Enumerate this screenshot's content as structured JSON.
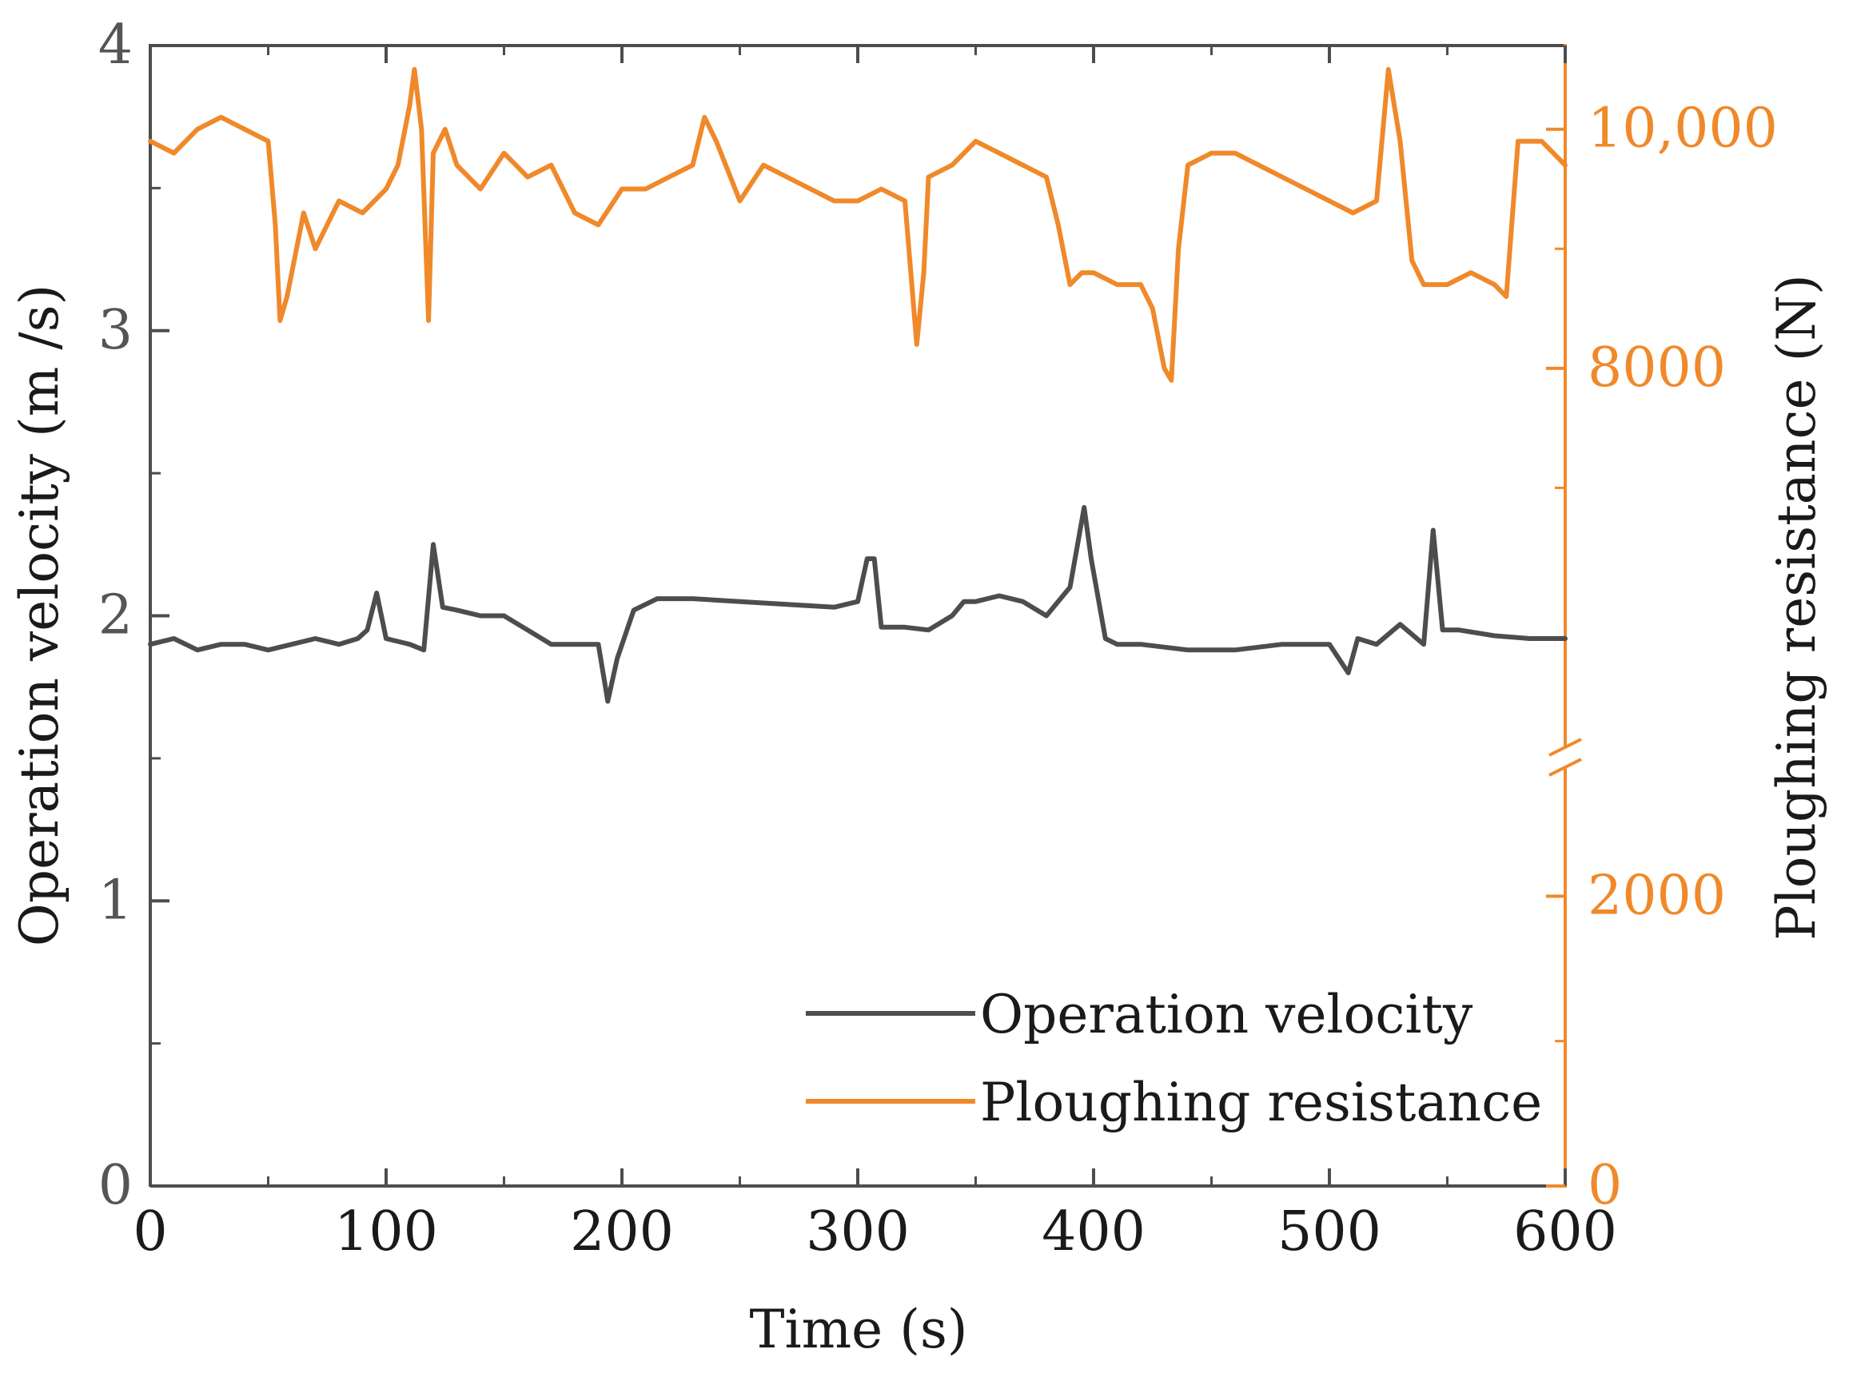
{
  "chart_data": {
    "type": "line",
    "xlabel": "Time (s)",
    "ylabel_left": "Operation velocity (m /s)",
    "ylabel_right": "Ploughing resistance (N)",
    "xlim": [
      0,
      600
    ],
    "ylim_left": [
      0,
      4
    ],
    "ylim_right_lower": [
      0,
      3000
    ],
    "ylim_right_upper": [
      6000,
      10700
    ],
    "right_axis_break": true,
    "x_ticks": [
      "0",
      "100",
      "200",
      "300",
      "400",
      "500",
      "600"
    ],
    "y_left_ticks": [
      "0",
      "1",
      "2",
      "3",
      "4"
    ],
    "y_right_ticks": [
      "0",
      "2000",
      "8000",
      "10,000"
    ],
    "legend_position": "bottom-right",
    "colors": {
      "velocity": "#4d4d4d",
      "resistance": "#f0892a"
    },
    "series": [
      {
        "name": "Operation velocity",
        "axis": "left",
        "x": [
          0,
          10,
          20,
          30,
          40,
          50,
          60,
          70,
          80,
          88,
          92,
          96,
          100,
          110,
          116,
          120,
          124,
          130,
          140,
          150,
          160,
          170,
          180,
          190,
          194,
          198,
          205,
          215,
          230,
          250,
          270,
          290,
          300,
          304,
          307,
          310,
          320,
          330,
          340,
          345,
          350,
          360,
          370,
          380,
          390,
          396,
          399,
          405,
          410,
          420,
          440,
          460,
          480,
          500,
          508,
          512,
          520,
          530,
          540,
          544,
          548,
          555,
          570,
          585,
          600
        ],
        "y": [
          1.9,
          1.92,
          1.88,
          1.9,
          1.9,
          1.88,
          1.9,
          1.92,
          1.9,
          1.92,
          1.95,
          2.08,
          1.92,
          1.9,
          1.88,
          2.25,
          2.03,
          2.02,
          2.0,
          2.0,
          1.95,
          1.9,
          1.9,
          1.9,
          1.7,
          1.85,
          2.02,
          2.06,
          2.06,
          2.05,
          2.04,
          2.03,
          2.05,
          2.2,
          2.2,
          1.96,
          1.96,
          1.95,
          2.0,
          2.05,
          2.05,
          2.07,
          2.05,
          2.0,
          2.1,
          2.38,
          2.2,
          1.92,
          1.9,
          1.9,
          1.88,
          1.88,
          1.9,
          1.9,
          1.8,
          1.92,
          1.9,
          1.97,
          1.9,
          2.3,
          1.95,
          1.95,
          1.93,
          1.92,
          1.92
        ]
      },
      {
        "name": "Ploughing resistance",
        "axis": "right",
        "x": [
          0,
          10,
          20,
          30,
          40,
          50,
          53,
          55,
          58,
          65,
          70,
          80,
          90,
          100,
          105,
          110,
          112,
          115,
          118,
          120,
          125,
          130,
          140,
          150,
          160,
          170,
          180,
          190,
          200,
          210,
          220,
          230,
          235,
          240,
          250,
          260,
          270,
          280,
          290,
          300,
          310,
          320,
          325,
          328,
          330,
          340,
          350,
          360,
          370,
          380,
          385,
          390,
          395,
          400,
          410,
          420,
          425,
          430,
          433,
          436,
          440,
          450,
          460,
          470,
          480,
          490,
          500,
          510,
          520,
          525,
          530,
          535,
          540,
          550,
          560,
          570,
          575,
          580,
          590,
          600
        ],
        "y": [
          9900,
          9800,
          10000,
          10100,
          10000,
          9900,
          9200,
          8400,
          8600,
          9300,
          9000,
          9400,
          9300,
          9500,
          9700,
          10200,
          10500,
          10000,
          8400,
          9800,
          10000,
          9700,
          9500,
          9800,
          9600,
          9700,
          9300,
          9200,
          9500,
          9500,
          9600,
          9700,
          10100,
          9900,
          9400,
          9700,
          9600,
          9500,
          9400,
          9400,
          9500,
          9400,
          8200,
          8800,
          9600,
          9700,
          9900,
          9800,
          9700,
          9600,
          9200,
          8700,
          8800,
          8800,
          8700,
          8700,
          8500,
          8000,
          7900,
          9000,
          9700,
          9800,
          9800,
          9700,
          9600,
          9500,
          9400,
          9300,
          9400,
          10500,
          9900,
          8900,
          8700,
          8700,
          8800,
          8700,
          8600,
          9900,
          9900,
          9700
        ]
      }
    ]
  }
}
